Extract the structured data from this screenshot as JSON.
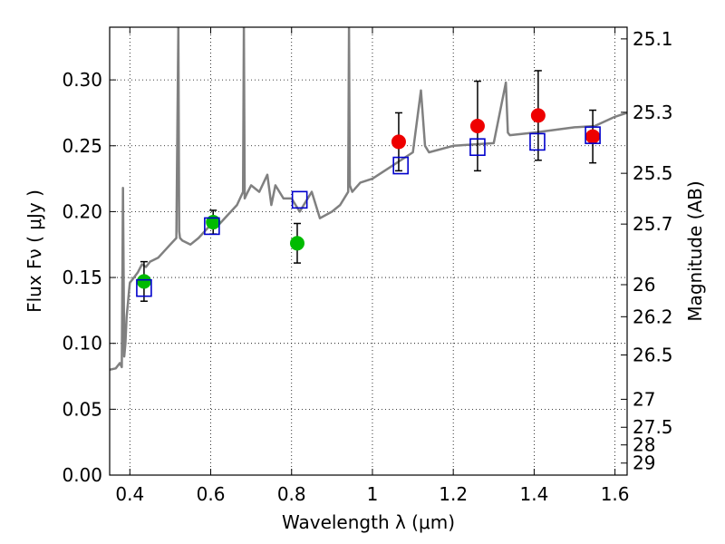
{
  "chart_data": {
    "type": "scatter",
    "xlabel": "Wavelength  λ (μm)",
    "ylabel": "Flux  Fν  ( μJy )",
    "y2label": "Magnitude (AB)",
    "xlim": [
      0.35,
      1.63
    ],
    "ylim": [
      0.0,
      0.34
    ],
    "x_ticks": [
      {
        "v": 0.4,
        "label": "0.4"
      },
      {
        "v": 0.6,
        "label": "0.6"
      },
      {
        "v": 0.8,
        "label": "0.8"
      },
      {
        "v": 1.0,
        "label": "1"
      },
      {
        "v": 1.2,
        "label": "1.2"
      },
      {
        "v": 1.4,
        "label": "1.4"
      },
      {
        "v": 1.6,
        "label": "1.6"
      }
    ],
    "y_ticks": [
      {
        "v": 0.0,
        "label": "0.00"
      },
      {
        "v": 0.05,
        "label": "0.05"
      },
      {
        "v": 0.1,
        "label": "0.10"
      },
      {
        "v": 0.15,
        "label": "0.15"
      },
      {
        "v": 0.2,
        "label": "0.20"
      },
      {
        "v": 0.25,
        "label": "0.25"
      },
      {
        "v": 0.3,
        "label": "0.30"
      }
    ],
    "y2_ticks": [
      {
        "mag": 25.1,
        "label": "25.1"
      },
      {
        "mag": 25.3,
        "label": "25.3"
      },
      {
        "mag": 25.5,
        "label": "25.5"
      },
      {
        "mag": 25.7,
        "label": "25.7"
      },
      {
        "mag": 26,
        "label": "26"
      },
      {
        "mag": 26.2,
        "label": "26.2"
      },
      {
        "mag": 26.5,
        "label": "26.5"
      },
      {
        "mag": 27,
        "label": "27"
      },
      {
        "mag": 27.5,
        "label": "27.5"
      },
      {
        "mag": 28,
        "label": "28"
      },
      {
        "mag": 29,
        "label": "29"
      }
    ],
    "grid": true,
    "series": [
      {
        "kind": "line",
        "color": "#808080",
        "x": [
          0.35,
          0.365,
          0.375,
          0.38,
          0.383,
          0.386,
          0.389,
          0.392,
          0.395,
          0.398,
          0.4,
          0.41,
          0.42,
          0.43,
          0.44,
          0.45,
          0.47,
          0.5,
          0.515,
          0.52,
          0.522,
          0.524,
          0.53,
          0.55,
          0.57,
          0.6,
          0.62,
          0.65,
          0.665,
          0.68,
          0.682,
          0.684,
          0.69,
          0.7,
          0.72,
          0.74,
          0.75,
          0.76,
          0.78,
          0.8,
          0.82,
          0.85,
          0.87,
          0.9,
          0.92,
          0.94,
          0.942,
          0.944,
          0.95,
          0.97,
          1.0,
          1.05,
          1.1,
          1.12,
          1.13,
          1.14,
          1.2,
          1.3,
          1.33,
          1.335,
          1.34,
          1.4,
          1.5,
          1.55,
          1.6,
          1.63
        ],
        "y": [
          0.08,
          0.081,
          0.085,
          0.082,
          0.218,
          0.09,
          0.1,
          0.12,
          0.13,
          0.14,
          0.146,
          0.15,
          0.154,
          0.16,
          0.158,
          0.162,
          0.165,
          0.175,
          0.18,
          0.34,
          0.185,
          0.18,
          0.178,
          0.175,
          0.18,
          0.19,
          0.19,
          0.2,
          0.205,
          0.215,
          0.34,
          0.21,
          0.214,
          0.22,
          0.215,
          0.228,
          0.205,
          0.22,
          0.21,
          0.21,
          0.2,
          0.215,
          0.195,
          0.2,
          0.205,
          0.215,
          0.34,
          0.22,
          0.215,
          0.222,
          0.225,
          0.235,
          0.245,
          0.292,
          0.25,
          0.245,
          0.25,
          0.252,
          0.298,
          0.26,
          0.258,
          0.26,
          0.264,
          0.265,
          0.272,
          0.275
        ]
      },
      {
        "kind": "scatter",
        "marker": "filled-circle",
        "color": "#00bb00",
        "points": [
          {
            "x": 0.435,
            "y": 0.147,
            "err": 0.015
          },
          {
            "x": 0.606,
            "y": 0.192,
            "err": 0.009
          },
          {
            "x": 0.814,
            "y": 0.176,
            "err": 0.015
          }
        ]
      },
      {
        "kind": "scatter",
        "marker": "filled-circle",
        "color": "#ee0000",
        "points": [
          {
            "x": 1.065,
            "y": 0.253,
            "err": 0.022
          },
          {
            "x": 1.26,
            "y": 0.265,
            "err": 0.034
          },
          {
            "x": 1.41,
            "y": 0.273,
            "err": 0.034
          },
          {
            "x": 1.545,
            "y": 0.257,
            "err": 0.02
          }
        ]
      },
      {
        "kind": "scatter",
        "marker": "open-square",
        "color": "#0000cc",
        "points": [
          {
            "x": 0.435,
            "y": 0.142
          },
          {
            "x": 0.603,
            "y": 0.189
          },
          {
            "x": 0.82,
            "y": 0.209
          },
          {
            "x": 1.07,
            "y": 0.235
          },
          {
            "x": 1.26,
            "y": 0.249
          },
          {
            "x": 1.408,
            "y": 0.253
          },
          {
            "x": 1.545,
            "y": 0.258
          }
        ]
      }
    ]
  }
}
